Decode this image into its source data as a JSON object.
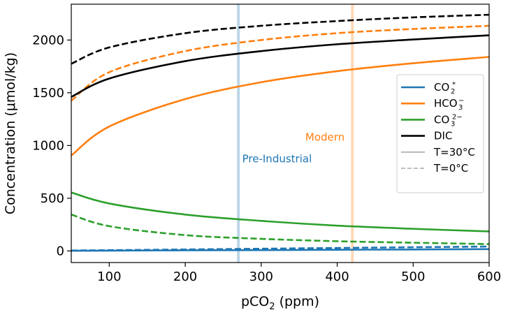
{
  "chart_data": {
    "type": "line",
    "xlabel": "pCO",
    "xlabel_sub": "2",
    "xlabel_unit": " (ppm)",
    "ylabel": "Concentration (μmol/kg)",
    "xlim": [
      50,
      600
    ],
    "ylim": [
      -110,
      2340
    ],
    "xticks": [
      100,
      200,
      300,
      400,
      500,
      600
    ],
    "yticks": [
      0,
      500,
      1000,
      1500,
      2000
    ],
    "grid": false,
    "legend_position": "center-right",
    "legend": [
      {
        "base": "CO",
        "sub": "2",
        "sup": "*",
        "color": "#1f77b4",
        "style": "solid"
      },
      {
        "base": "HCO",
        "sub": "3",
        "sup": "−",
        "color": "#ff7f0e",
        "style": "solid"
      },
      {
        "base": "CO",
        "sub": "3",
        "sup": "2−",
        "color": "#2ca02c",
        "style": "solid"
      },
      {
        "base": "DIC",
        "sub": "",
        "sup": "",
        "color": "#000000",
        "style": "solid"
      },
      {
        "base": "T=30°C",
        "sub": "",
        "sup": "",
        "color": "#aaaaaa",
        "style": "solid"
      },
      {
        "base": "T=0°C",
        "sub": "",
        "sup": "",
        "color": "#aaaaaa",
        "style": "dashed"
      }
    ],
    "vlines": [
      {
        "x": 270,
        "label": "Pre-Industrial",
        "color": "#1f77b4",
        "label_at": [
          275,
          840
        ]
      },
      {
        "x": 420,
        "label": "Modern",
        "color": "#ff7f0e",
        "label_at": [
          358,
          1045
        ]
      }
    ],
    "x": [
      50,
      100,
      200,
      300,
      400,
      500,
      600
    ],
    "series": [
      {
        "key": "dic_0c",
        "species": "DIC",
        "temperature": "T=0°C",
        "color": "#000000",
        "style": "dashed",
        "values": [
          1775,
          1930,
          2065,
          2135,
          2180,
          2215,
          2240
        ]
      },
      {
        "key": "hco3_0c",
        "species": "HCO3-",
        "temperature": "T=0°C",
        "color": "#ff7f0e",
        "style": "dashed",
        "values": [
          1425,
          1695,
          1895,
          2000,
          2065,
          2105,
          2135
        ]
      },
      {
        "key": "dic_30c",
        "species": "DIC",
        "temperature": "T=30°C",
        "color": "#000000",
        "style": "solid",
        "values": [
          1460,
          1635,
          1800,
          1895,
          1960,
          2005,
          2045
        ]
      },
      {
        "key": "hco3_30c",
        "species": "HCO3-",
        "temperature": "T=30°C",
        "color": "#ff7f0e",
        "style": "solid",
        "values": [
          905,
          1180,
          1440,
          1600,
          1705,
          1780,
          1840
        ]
      },
      {
        "key": "co3_30c",
        "species": "CO3 2-",
        "temperature": "T=30°C",
        "color": "#2ca02c",
        "style": "solid",
        "values": [
          555,
          450,
          345,
          285,
          240,
          210,
          185
        ]
      },
      {
        "key": "co3_0c",
        "species": "CO3 2-",
        "temperature": "T=0°C",
        "color": "#2ca02c",
        "style": "dashed",
        "values": [
          345,
          235,
          150,
          115,
          92,
          78,
          65
        ]
      },
      {
        "key": "co2_0c",
        "species": "CO2*",
        "temperature": "T=0°C",
        "color": "#1f77b4",
        "style": "dashed",
        "values": [
          4,
          7,
          14,
          21,
          28,
          35,
          42
        ]
      },
      {
        "key": "co2_30c",
        "species": "CO2*",
        "temperature": "T=30°C",
        "color": "#1f77b4",
        "style": "solid",
        "values": [
          2,
          3,
          6,
          8,
          11,
          14,
          17
        ]
      }
    ]
  }
}
